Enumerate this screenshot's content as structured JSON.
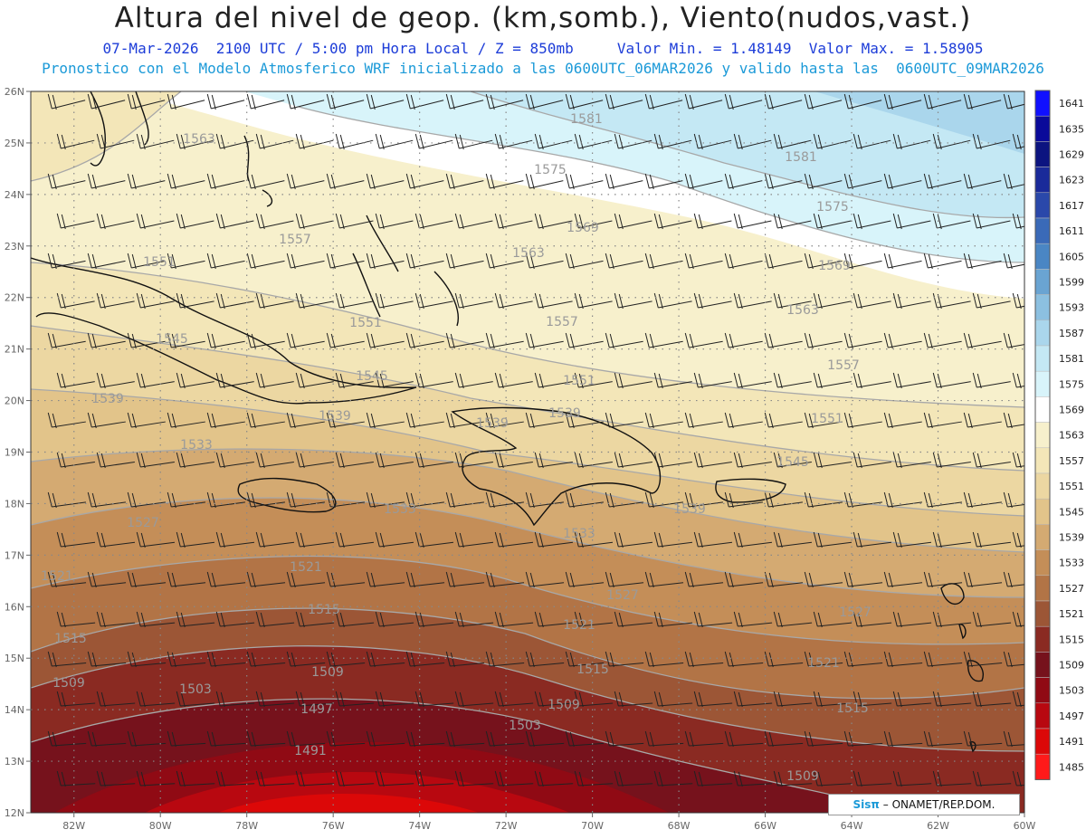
{
  "title": "Altura del nivel de geop. (km,somb.), Viento(nudos,vast.)",
  "subtitle1": "07-Mar-2026  2100 UTC / 5:00 pm Hora Local / Z = 850mb     Valor Min. = 1.48149  Valor Max. = 1.58905",
  "subtitle2": "Pronostico con el Modelo Atmosferico WRF inicializado a las 0600UTC_06MAR2026 y valido hasta las  0600UTC_09MAR2026",
  "credit": {
    "brand": "Sisπ",
    "text": "– ONAMET/REP.DOM."
  },
  "lat_labels": [
    "26N",
    "25N",
    "24N",
    "23N",
    "22N",
    "21N",
    "20N",
    "19N",
    "18N",
    "17N",
    "16N",
    "15N",
    "14N",
    "13N",
    "12N"
  ],
  "lon_labels": [
    "82W",
    "80W",
    "78W",
    "76W",
    "74W",
    "72W",
    "70W",
    "68W",
    "66W",
    "64W",
    "62W",
    "60W"
  ],
  "colorbar": {
    "levels": [
      "1641",
      "1635",
      "1629",
      "1623",
      "1617",
      "1611",
      "1605",
      "1599",
      "1593",
      "1587",
      "1581",
      "1575",
      "1569",
      "1563",
      "1557",
      "1551",
      "1545",
      "1539",
      "1533",
      "1527",
      "1521",
      "1515",
      "1509",
      "1503",
      "1497",
      "1491",
      "1485"
    ],
    "colors": [
      "#1010ff",
      "#0a0a9a",
      "#0c1480",
      "#1a2a9a",
      "#2a48aa",
      "#3a6ab8",
      "#4a86c4",
      "#6aa4d2",
      "#8cc0e0",
      "#aad6ec",
      "#c4e8f4",
      "#d8f4fa",
      "#ffffff",
      "#f7f0cc",
      "#f3e6b8",
      "#ecd7a2",
      "#e2c48a",
      "#d4aa72",
      "#c48e58",
      "#b27446",
      "#9c5636",
      "#8a2a22",
      "#76121c",
      "#900a14",
      "#b80810",
      "#dc0808",
      "#ff1a1a"
    ]
  },
  "contour_labels": [
    "1581",
    "1581",
    "1575",
    "1575",
    "1569",
    "1569",
    "1563",
    "1563",
    "1563",
    "1557",
    "1557",
    "1557",
    "1551",
    "1551",
    "1551",
    "1551",
    "1545",
    "1545",
    "1545",
    "1539",
    "1539",
    "1539",
    "1539",
    "1539",
    "1533",
    "1533",
    "1533",
    "1527",
    "1527",
    "1527",
    "1521",
    "1521",
    "1521",
    "1521",
    "1515",
    "1515",
    "1515",
    "1515",
    "1509",
    "1509",
    "1509",
    "1509",
    "1503",
    "1503",
    "1497",
    "1491"
  ]
}
